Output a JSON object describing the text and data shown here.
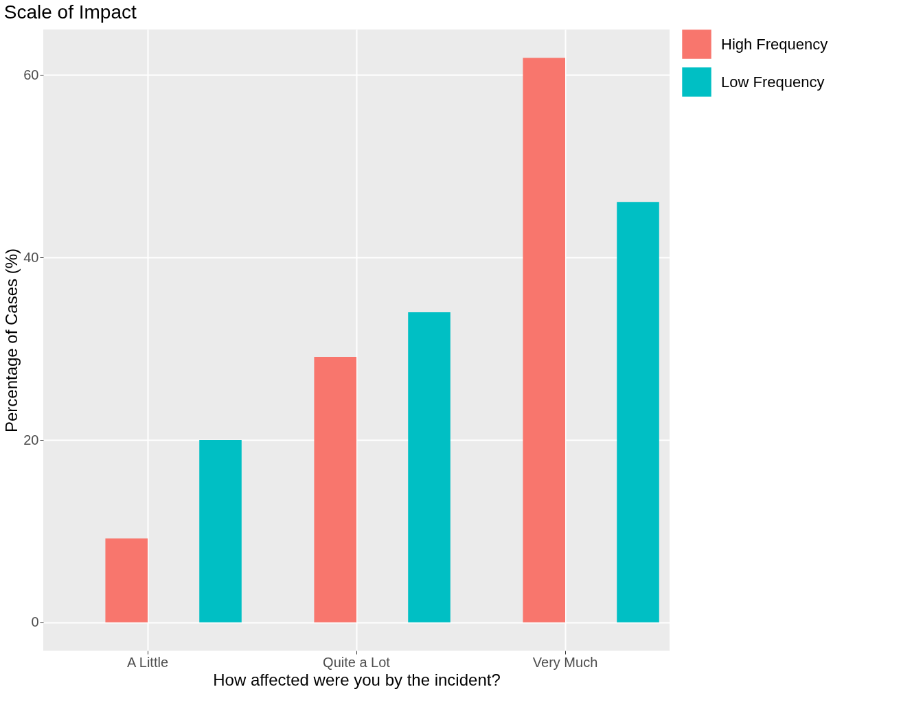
{
  "chart_data": {
    "type": "bar",
    "title": "Scale of Impact",
    "xlabel": "How affected were you by the incident?",
    "ylabel": "Percentage of Cases (%)",
    "categories": [
      "A Little",
      "Quite a Lot",
      "Very Much"
    ],
    "series": [
      {
        "name": "High Frequency",
        "color": "#f8766d",
        "values": [
          9.2,
          29.1,
          61.9
        ]
      },
      {
        "name": "Low Frequency",
        "color": "#00bfc4",
        "values": [
          20.0,
          34.0,
          46.1
        ]
      }
    ],
    "ylim": [
      -3.1,
      65
    ],
    "yticks": [
      0,
      20,
      40,
      60
    ],
    "grid": true,
    "legend": "right"
  }
}
